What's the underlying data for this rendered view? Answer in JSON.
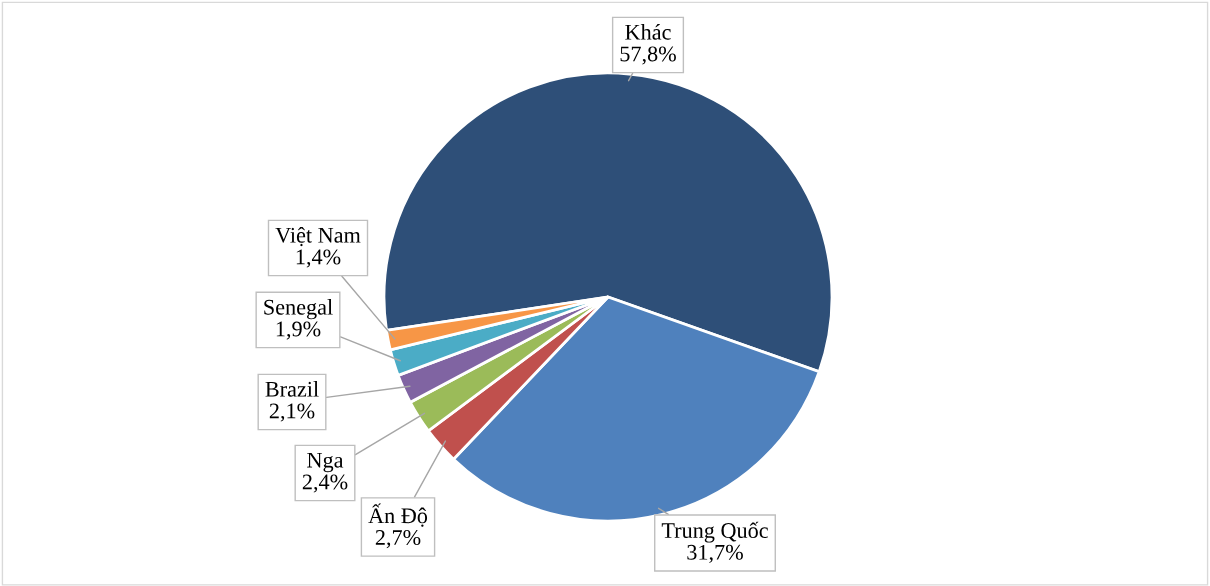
{
  "chart_data": {
    "type": "pie",
    "categories": [
      "Khác",
      "Trung Quốc",
      "Ấn Độ",
      "Nga",
      "Brazil",
      "Senegal",
      "Việt Nam"
    ],
    "values": [
      57.8,
      31.7,
      2.7,
      2.4,
      2.1,
      1.9,
      1.4
    ],
    "value_labels": [
      "57,8%",
      "31,7%",
      "2,7%",
      "2,4%",
      "2,1%",
      "1,9%",
      "1,4%"
    ],
    "colors": [
      "#2e4f78",
      "#4f81bd",
      "#c0504d",
      "#9bbb59",
      "#8064a2",
      "#4bacc6",
      "#f79646"
    ],
    "legend": false
  }
}
